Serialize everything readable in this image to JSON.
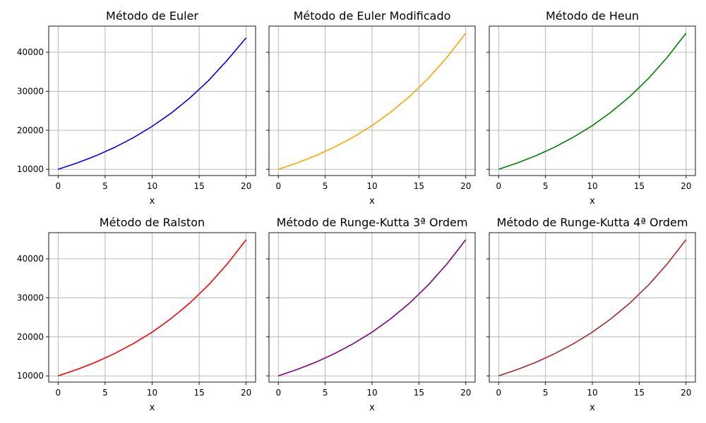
{
  "chart_data": [
    {
      "type": "line",
      "title": "Método de Euler",
      "xlabel": "x",
      "ylabel": "",
      "xlim": [
        -1,
        21
      ],
      "ylim": [
        8400,
        46700
      ],
      "xticks": [
        0,
        5,
        10,
        15,
        20
      ],
      "yticks": [
        10000,
        20000,
        30000,
        40000
      ],
      "grid": true,
      "color": "#0000ff",
      "series": [
        {
          "x": [
            0,
            2,
            4,
            6,
            8,
            10,
            12,
            14,
            16,
            18,
            20
          ],
          "values": [
            10000,
            11600,
            13450,
            15600,
            18100,
            21000,
            24350,
            28250,
            32750,
            38000,
            43700
          ]
        }
      ]
    },
    {
      "type": "line",
      "title": "Método de Euler Modificado",
      "xlabel": "x",
      "ylabel": "",
      "xlim": [
        -1,
        21
      ],
      "ylim": [
        8400,
        46700
      ],
      "xticks": [
        0,
        5,
        10,
        15,
        20
      ],
      "yticks": [
        10000,
        20000,
        30000,
        40000
      ],
      "grid": true,
      "color": "#ffa500",
      "series": [
        {
          "x": [
            0,
            2,
            4,
            6,
            8,
            10,
            12,
            14,
            16,
            18,
            20
          ],
          "values": [
            10000,
            11620,
            13500,
            15700,
            18250,
            21200,
            24650,
            28650,
            33300,
            38700,
            44900
          ]
        }
      ]
    },
    {
      "type": "line",
      "title": "Método de Heun",
      "xlabel": "x",
      "ylabel": "",
      "xlim": [
        -1,
        21
      ],
      "ylim": [
        8400,
        46700
      ],
      "xticks": [
        0,
        5,
        10,
        15,
        20
      ],
      "yticks": [
        10000,
        20000,
        30000,
        40000
      ],
      "grid": true,
      "color": "#008000",
      "series": [
        {
          "x": [
            0,
            2,
            4,
            6,
            8,
            10,
            12,
            14,
            16,
            18,
            20
          ],
          "values": [
            10000,
            11620,
            13500,
            15700,
            18250,
            21200,
            24650,
            28650,
            33300,
            38700,
            44900
          ]
        }
      ]
    },
    {
      "type": "line",
      "title": "Método de Ralston",
      "xlabel": "x",
      "ylabel": "",
      "xlim": [
        -1,
        21
      ],
      "ylim": [
        8400,
        46700
      ],
      "xticks": [
        0,
        5,
        10,
        15,
        20
      ],
      "yticks": [
        10000,
        20000,
        30000,
        40000
      ],
      "grid": true,
      "color": "#ff0000",
      "series": [
        {
          "x": [
            0,
            2,
            4,
            6,
            8,
            10,
            12,
            14,
            16,
            18,
            20
          ],
          "values": [
            10000,
            11620,
            13500,
            15700,
            18250,
            21200,
            24650,
            28650,
            33300,
            38700,
            44900
          ]
        }
      ]
    },
    {
      "type": "line",
      "title": "Método de Runge-Kutta 3ª Ordem",
      "xlabel": "x",
      "ylabel": "",
      "xlim": [
        -1,
        21
      ],
      "ylim": [
        8400,
        46700
      ],
      "xticks": [
        0,
        5,
        10,
        15,
        20
      ],
      "yticks": [
        10000,
        20000,
        30000,
        40000
      ],
      "grid": true,
      "color": "#800080",
      "series": [
        {
          "x": [
            0,
            2,
            4,
            6,
            8,
            10,
            12,
            14,
            16,
            18,
            20
          ],
          "values": [
            10000,
            11620,
            13500,
            15700,
            18250,
            21200,
            24650,
            28650,
            33300,
            38700,
            44900
          ]
        }
      ]
    },
    {
      "type": "line",
      "title": "Método de Runge-Kutta 4ª Ordem",
      "xlabel": "x",
      "ylabel": "",
      "xlim": [
        -1,
        21
      ],
      "ylim": [
        8400,
        46700
      ],
      "xticks": [
        0,
        5,
        10,
        15,
        20
      ],
      "yticks": [
        10000,
        20000,
        30000,
        40000
      ],
      "grid": true,
      "color": "#a52a2a",
      "series": [
        {
          "x": [
            0,
            2,
            4,
            6,
            8,
            10,
            12,
            14,
            16,
            18,
            20
          ],
          "values": [
            10000,
            11620,
            13500,
            15700,
            18250,
            21200,
            24650,
            28650,
            33300,
            38700,
            44900
          ]
        }
      ]
    }
  ]
}
